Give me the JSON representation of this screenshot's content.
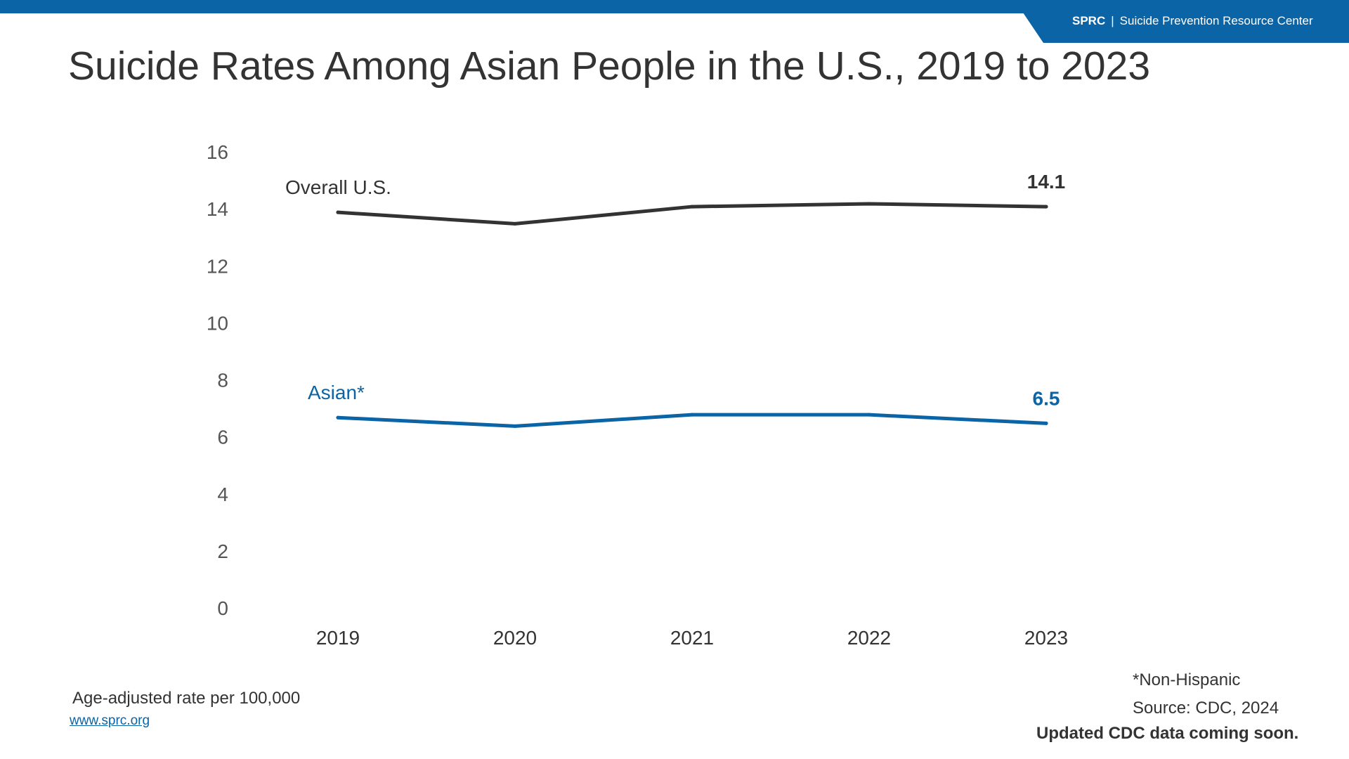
{
  "header": {
    "brand_abbr": "SPRC",
    "brand_separator": "|",
    "brand_name": "Suicide Prevention Resource Center"
  },
  "colors": {
    "brand": "#0b64a6",
    "overall_series": "#333333",
    "asian_series": "#0b64a6",
    "axis_text": "#555555"
  },
  "title": "Suicide Rates Among Asian People in the U.S., 2019 to 2023",
  "chart_data": {
    "type": "line",
    "title": "Suicide Rates Among Asian People in the U.S., 2019 to 2023",
    "xlabel": "",
    "ylabel": "Age-adjusted rate per 100,000",
    "categories": [
      "2019",
      "2020",
      "2021",
      "2022",
      "2023"
    ],
    "yticks": [
      "0",
      "2",
      "4",
      "6",
      "8",
      "10",
      "12",
      "14",
      "16"
    ],
    "ylim": [
      0,
      16
    ],
    "grid": false,
    "series": [
      {
        "name": "Overall U.S.",
        "values": [
          13.9,
          13.5,
          14.1,
          14.2,
          14.1
        ],
        "end_label": "14.1",
        "color": "#333333"
      },
      {
        "name": "Asian*",
        "values": [
          6.7,
          6.4,
          6.8,
          6.8,
          6.5
        ],
        "end_label": "6.5",
        "color": "#0b64a6"
      }
    ]
  },
  "footer": {
    "unit_note": "Age-adjusted rate per 100,000",
    "website": "www.sprc.org",
    "footnote": "*Non-Hispanic",
    "source": "Source: CDC, 2024",
    "update_note": "Updated CDC data coming soon."
  }
}
